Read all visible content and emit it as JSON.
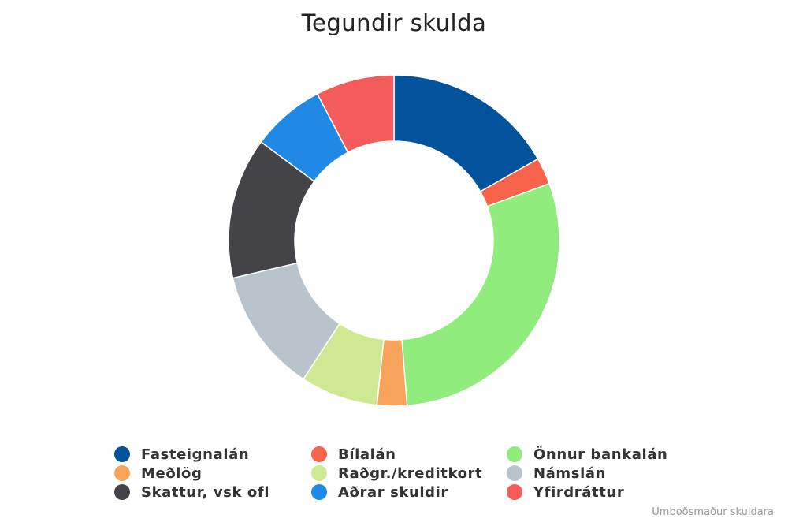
{
  "chart_data": {
    "type": "pie",
    "title": "Tegundir skulda",
    "categories": [
      "Fasteignalán",
      "Bílalán",
      "Önnur bankalán",
      "Meðlög",
      "Raðgr./kreditkort",
      "Námslán",
      "Skattur, vsk ofl",
      "Aðrar skuldir",
      "Yfirdráttur"
    ],
    "values": [
      17.3,
      2.7,
      30.2,
      3.0,
      7.8,
      12.5,
      14.2,
      7.4,
      7.9
    ],
    "colors": [
      "#02529c",
      "#f7634a",
      "#90ed7d",
      "#f7a35c",
      "#cfe892",
      "#b8c3cb",
      "#434348",
      "#1f89e5",
      "#f45b5b"
    ],
    "slice_order": [
      0,
      1,
      2,
      3,
      4,
      5,
      6,
      7,
      8
    ],
    "inner_radius_ratio": 0.6,
    "legend_position": "bottom"
  },
  "credit": "Umboðsmaður skuldara"
}
